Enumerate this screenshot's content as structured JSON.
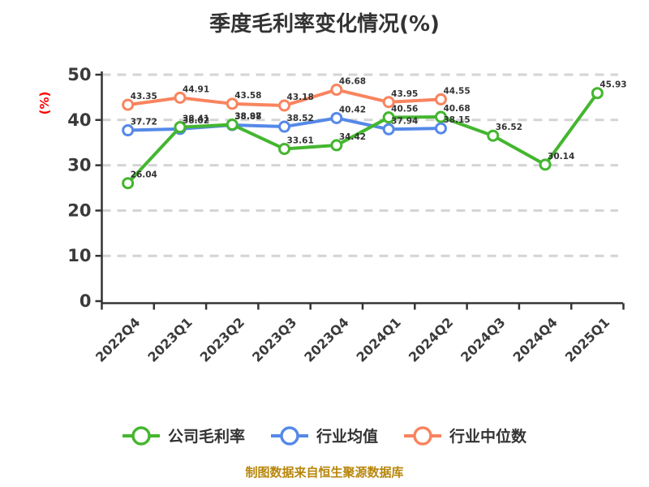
{
  "title": "季度毛利率变化情况(%)",
  "y_axis_unit_label": "(%)",
  "footer_note": "制图数据来自恒生聚源数据库",
  "colors": {
    "company_series": "#44b62f",
    "industry_avg_series": "#5589e8",
    "industry_median_series": "#f8845f",
    "axis": "#333333",
    "gridline": "#d4d4d4",
    "tick_label": "#3a3a3a",
    "y_unit_label": "#ff0000",
    "footer": "#b8860b",
    "marker_fill": "#ffffff",
    "point_label": "#333333"
  },
  "chart_data": {
    "type": "line",
    "title": "季度毛利率变化情况(%)",
    "xlabel": "",
    "ylabel": "(%)",
    "ylim": [
      0,
      50
    ],
    "yticks": [
      0,
      10,
      20,
      30,
      40,
      50
    ],
    "grid": "horizontal-dashed",
    "legend_position": "bottom",
    "point_labels": "two-decimal values shown beside each point",
    "categories": [
      "2022Q4",
      "2023Q1",
      "2023Q2",
      "2023Q3",
      "2023Q4",
      "2024Q1",
      "2024Q2",
      "2024Q3",
      "2024Q4",
      "2025Q1"
    ],
    "series": [
      {
        "name": "公司毛利率",
        "color": "#44b62f",
        "values": [
          26.04,
          38.41,
          38.97,
          33.61,
          34.42,
          40.56,
          40.68,
          36.52,
          30.14,
          45.93
        ]
      },
      {
        "name": "行业均值",
        "color": "#5589e8",
        "values": [
          37.72,
          38.02,
          38.88,
          38.52,
          40.42,
          37.94,
          38.15
        ]
      },
      {
        "name": "行业中位数",
        "color": "#f8845f",
        "values": [
          43.35,
          44.91,
          43.58,
          43.18,
          46.68,
          43.95,
          44.55
        ]
      }
    ]
  },
  "legend": {
    "items": [
      {
        "label": "公司毛利率",
        "color": "#44b62f"
      },
      {
        "label": "行业均值",
        "color": "#5589e8"
      },
      {
        "label": "行业中位数",
        "color": "#f8845f"
      }
    ]
  }
}
